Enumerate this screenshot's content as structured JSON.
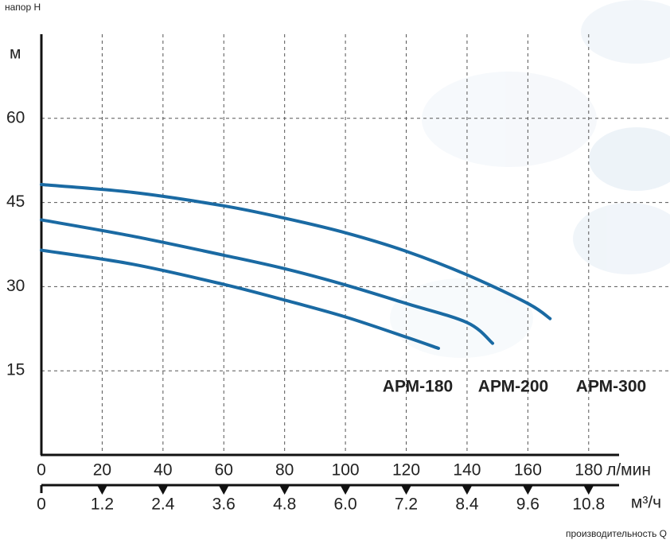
{
  "chart_data": {
    "type": "line",
    "y_label": "напор Н",
    "y_unit": "м",
    "x_unit": "л/мин",
    "x2_unit": "м³/ч",
    "x_label": "производительность Q",
    "xlim": [
      0,
      190
    ],
    "xticks": [
      0,
      20,
      40,
      60,
      80,
      100,
      120,
      140,
      160,
      180
    ],
    "x2lim": [
      0,
      11.4
    ],
    "x2ticks": [
      0,
      1.2,
      2.4,
      3.6,
      4.8,
      {
        "value": 6,
        "label": "6.0"
      },
      7.2,
      8.4,
      9.6,
      10.8
    ],
    "ylim": [
      0,
      75
    ],
    "yticks": [
      15,
      30,
      45,
      60
    ],
    "grid": true,
    "series": [
      {
        "name": "АРМ-180",
        "color": "#1a6aa3",
        "x": [
          0,
          30,
          60,
          80,
          100,
          120,
          130.6
        ],
        "values": [
          36.5,
          34,
          30.4,
          27.6,
          24.6,
          21,
          19
        ]
      },
      {
        "name": "АРМ-200",
        "color": "#1a6aa3",
        "x": [
          0,
          30,
          60,
          80,
          100,
          120,
          140,
          148.4
        ],
        "values": [
          41.9,
          39,
          35.6,
          33.2,
          30.3,
          27,
          23.6,
          19.9
        ]
      },
      {
        "name": "АРМ-300",
        "color": "#1a6aa3",
        "x": [
          0,
          30,
          60,
          80,
          100,
          120,
          140,
          160,
          167.3
        ],
        "values": [
          48.2,
          46.8,
          44.4,
          42.2,
          39.6,
          36.3,
          32.1,
          27,
          24.3
        ]
      }
    ]
  }
}
